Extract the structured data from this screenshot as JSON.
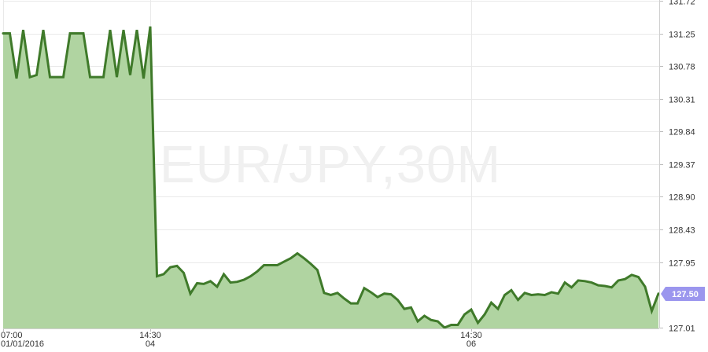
{
  "watermark": "EUR/JPY,30M",
  "colors": {
    "area_fill": "#b0d4a1",
    "line": "#3f7a2a",
    "badge_bg": "#9b96ee",
    "badge_text": "#ffffff"
  },
  "chart_data": {
    "type": "area",
    "title": "",
    "xlabel": "",
    "ylabel": "",
    "ylim": [
      127.01,
      131.72
    ],
    "y_ticks": [
      "131.72",
      "131.25",
      "130.78",
      "130.31",
      "129.84",
      "129.37",
      "128.90",
      "128.43",
      "127.95",
      "127.01"
    ],
    "x_ticks": [
      {
        "index": 0,
        "line1": "07:00",
        "line2": "01/01/2016"
      },
      {
        "index": 22,
        "line1": "14:30",
        "line2": "04"
      },
      {
        "index": 70,
        "line1": "14:30",
        "line2": "06"
      }
    ],
    "current_value": "127.50",
    "series": [
      {
        "values": [
          131.25,
          131.25,
          130.6,
          131.3,
          130.62,
          130.65,
          131.3,
          130.62,
          130.62,
          130.62,
          131.25,
          131.25,
          131.25,
          130.62,
          130.62,
          130.62,
          131.3,
          130.62,
          131.3,
          130.65,
          131.3,
          130.6,
          131.35,
          127.75,
          127.78,
          127.88,
          127.9,
          127.8,
          127.5,
          127.65,
          127.64,
          127.68,
          127.6,
          127.78,
          127.66,
          127.67,
          127.7,
          127.75,
          127.82,
          127.91,
          127.91,
          127.91,
          127.96,
          128.01,
          128.08,
          128.01,
          127.93,
          127.84,
          127.51,
          127.48,
          127.51,
          127.43,
          127.36,
          127.36,
          127.58,
          127.52,
          127.45,
          127.5,
          127.49,
          127.41,
          127.28,
          127.3,
          127.1,
          127.18,
          127.12,
          127.1,
          127.01,
          127.05,
          127.05,
          127.2,
          127.27,
          127.08,
          127.2,
          127.37,
          127.28,
          127.48,
          127.55,
          127.41,
          127.51,
          127.48,
          127.49,
          127.48,
          127.52,
          127.5,
          127.66,
          127.59,
          127.69,
          127.68,
          127.66,
          127.62,
          127.61,
          127.59,
          127.69,
          127.71,
          127.77,
          127.74,
          127.6,
          127.25,
          127.5
        ]
      }
    ]
  }
}
